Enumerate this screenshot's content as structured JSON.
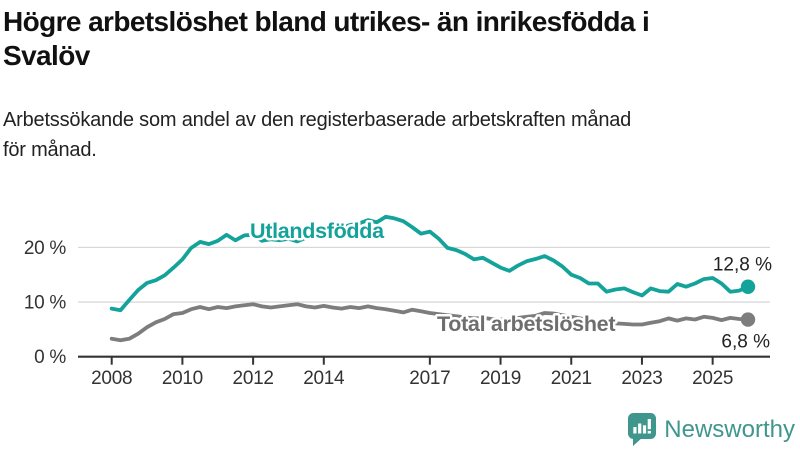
{
  "header": {
    "title": "Högre arbetslöshet bland utrikes- än inrikesfödda i\nSvalöv",
    "subtitle": "Arbetssökande som andel av den registerbaserade arbetskraften månad\nför månad."
  },
  "branding": {
    "name": "Newsworthy",
    "color": "#3f968d"
  },
  "colors": {
    "series_teal": "#14a39a",
    "series_gray": "#7d7d7d",
    "series_gray_label": "#6e6e6e",
    "axis": "#333333",
    "grid": "#d9d9d9",
    "tick_text": "#333333",
    "end_label_text": "#222222"
  },
  "chart_data": {
    "type": "line",
    "title": "Högre arbetslöshet bland utrikes- än inrikesfödda i Svalöv",
    "subtitle": "Arbetssökande som andel av den registerbaserade arbetskraften månad för månad.",
    "unit": "%",
    "x_ticks": [
      2008,
      2010,
      2012,
      2014,
      2017,
      2019,
      2021,
      2023,
      2025
    ],
    "x_tick_labels": [
      "2008",
      "2010",
      "2012",
      "2014",
      "2017",
      "2019",
      "2021",
      "2023",
      "2025"
    ],
    "y_ticks": [
      0,
      10,
      20
    ],
    "y_tick_labels": [
      "0 %",
      "10 %",
      "20 %"
    ],
    "x_range": [
      2008,
      2026
    ],
    "y_range": [
      0,
      27
    ],
    "grid": "horizontal-only",
    "legend_position": "inline-labels",
    "series": [
      {
        "name": "Utlandsfödda",
        "color": "#14a39a",
        "end_label": "12,8 %",
        "end_value": 12.8,
        "x_start": 2008,
        "x_step": 0.25,
        "values": [
          8.8,
          8.5,
          10.4,
          12.2,
          13.5,
          14.0,
          14.9,
          16.3,
          17.8,
          19.9,
          21.0,
          20.6,
          21.2,
          22.3,
          21.3,
          22.2,
          22.3,
          21.2,
          21.5,
          21.3,
          21.6,
          21.1,
          21.8,
          22.2,
          22.6,
          23.1,
          23.6,
          24.1,
          24.4,
          25.0,
          24.6,
          25.6,
          25.3,
          24.8,
          23.7,
          22.5,
          22.9,
          21.6,
          19.9,
          19.5,
          18.8,
          17.8,
          18.1,
          17.2,
          16.3,
          15.7,
          16.7,
          17.5,
          17.9,
          18.4,
          17.6,
          16.5,
          15.0,
          14.4,
          13.4,
          13.4,
          11.9,
          12.3,
          12.5,
          11.8,
          11.2,
          12.5,
          12.0,
          11.9,
          13.3,
          12.8,
          13.4,
          14.2,
          14.4,
          13.4,
          11.9,
          12.1,
          12.8
        ]
      },
      {
        "name": "Total arbetslöshet",
        "color": "#7d7d7d",
        "end_label": "6,8 %",
        "end_value": 6.8,
        "x_start": 2008,
        "x_step": 0.25,
        "values": [
          3.3,
          3.0,
          3.3,
          4.2,
          5.4,
          6.3,
          6.9,
          7.8,
          8.0,
          8.7,
          9.1,
          8.7,
          9.1,
          8.9,
          9.2,
          9.4,
          9.6,
          9.2,
          9.0,
          9.2,
          9.4,
          9.6,
          9.2,
          9.0,
          9.3,
          9.0,
          8.8,
          9.1,
          8.9,
          9.2,
          8.9,
          8.7,
          8.4,
          8.1,
          8.6,
          8.3,
          8.0,
          7.8,
          7.6,
          7.4,
          7.2,
          7.0,
          7.1,
          6.9,
          6.8,
          6.9,
          7.1,
          7.3,
          7.5,
          8.0,
          7.9,
          7.6,
          7.3,
          7.0,
          6.7,
          6.4,
          6.2,
          6.1,
          6.0,
          5.9,
          5.9,
          6.2,
          6.5,
          7.0,
          6.6,
          7.0,
          6.8,
          7.3,
          7.1,
          6.7,
          7.1,
          6.9,
          6.8
        ]
      }
    ]
  }
}
